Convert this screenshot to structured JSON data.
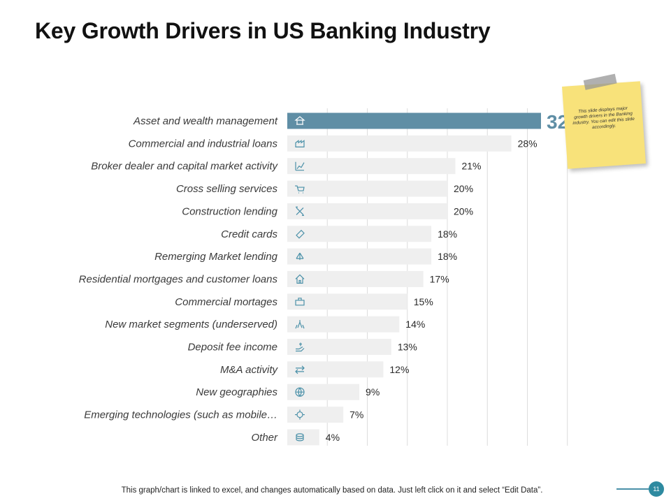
{
  "page": {
    "title": "Key Growth Drivers in US Banking Industry",
    "footer_text": "This graph/chart is linked to excel, and changes automatically based on data. Just left click on it and select “Edit Data”.",
    "page_number": "11",
    "sticky_note": "This slide displays major growth drivers in the Banking industry. You can edit this slide accordingly."
  },
  "colors": {
    "highlight_bar": "#5f8ea5",
    "bar": "#efefef",
    "gridline": "#dcdcdc",
    "accent": "#4a90a8",
    "page_badge": "#2e8aa0"
  },
  "chart_data": {
    "type": "bar",
    "orientation": "horizontal",
    "title": "Key Growth Drivers in US Banking Industry",
    "xlabel": "",
    "ylabel": "",
    "xlim": [
      0,
      40
    ],
    "grid": true,
    "value_suffix": "%",
    "categories": [
      "Asset and wealth management",
      "Commercial and industrial loans",
      "Broker dealer and capital market activity",
      "Cross selling services",
      "Construction lending",
      "Credit cards",
      "Remerging Market lending",
      "Residential mortgages and customer loans",
      "Commercial mortages",
      "New market segments (underserved)",
      "Deposit fee income",
      "M&A activity",
      "New geographies",
      "Emerging technologies (such as mobile…",
      "Other"
    ],
    "values": [
      32,
      28,
      21,
      20,
      20,
      18,
      18,
      17,
      15,
      14,
      13,
      12,
      9,
      7,
      4
    ],
    "value_labels": [
      "32",
      "28%",
      "21%",
      "20%",
      "20%",
      "18%",
      "18%",
      "17%",
      "15%",
      "14%",
      "13%",
      "12%",
      "9%",
      "7%",
      "4%"
    ],
    "icons": [
      "wealth-icon",
      "factory-icon",
      "growth-chart-icon",
      "cart-icon",
      "tools-icon",
      "credit-card-icon",
      "network-icon",
      "house-icon",
      "briefcase-icon",
      "people-icon",
      "hand-money-icon",
      "exchange-arrows-icon",
      "globe-icon",
      "gear-icon",
      "coins-icon"
    ],
    "highlight_index": 0
  }
}
